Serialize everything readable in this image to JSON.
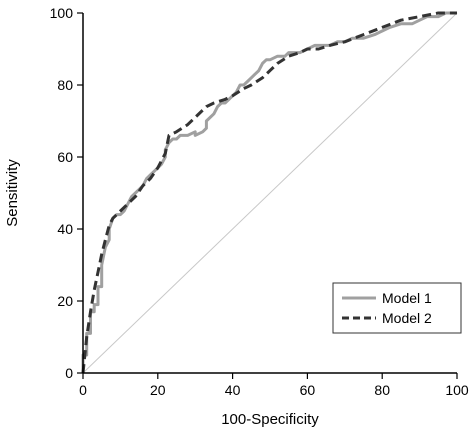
{
  "chart_data": {
    "type": "line",
    "title": "",
    "xlabel": "100-Specificity",
    "ylabel": "Sensitivity",
    "xlim": [
      0,
      100
    ],
    "ylim": [
      0,
      100
    ],
    "x_ticks": [
      0,
      20,
      40,
      60,
      80,
      100
    ],
    "y_ticks": [
      0,
      20,
      40,
      60,
      80,
      100
    ],
    "x_tick_labels": [
      "0",
      "20",
      "40",
      "60",
      "80",
      "100"
    ],
    "y_tick_labels": [
      "0",
      "20",
      "40",
      "60",
      "80",
      "100"
    ],
    "grid": false,
    "legend_position": "bottom-right",
    "reference_line": {
      "x": [
        0,
        100
      ],
      "y": [
        0,
        100
      ],
      "color": "#c8c8c8"
    },
    "series": [
      {
        "name": "Model 1",
        "style": "solid",
        "color": "#a0a0a0",
        "x": [
          0,
          0,
          1,
          1,
          2,
          2,
          3,
          3,
          4,
          4,
          5,
          5,
          6,
          7,
          7,
          8,
          9,
          10,
          11,
          12,
          13,
          14,
          15,
          16,
          17,
          18,
          19,
          20,
          21,
          22,
          22,
          23,
          24,
          25,
          26,
          28,
          30,
          30,
          32,
          33,
          33,
          35,
          36,
          37,
          38,
          39,
          40,
          41,
          42,
          43,
          44,
          45,
          46,
          47,
          48,
          49,
          50,
          52,
          54,
          55,
          56,
          58,
          60,
          62,
          64,
          66,
          68,
          70,
          72,
          75,
          78,
          80,
          82,
          85,
          87,
          88,
          90,
          92,
          95,
          97,
          100
        ],
        "y": [
          0,
          5,
          5,
          11,
          11,
          17,
          17,
          19,
          19,
          24,
          24,
          30,
          35,
          37,
          40,
          43,
          44,
          44,
          45,
          47,
          49,
          50,
          51,
          52,
          54,
          55,
          56,
          57,
          58,
          60,
          62,
          64,
          65,
          65,
          66,
          66,
          67,
          66,
          67,
          68,
          70,
          72,
          74,
          75,
          75,
          76,
          77,
          78,
          80,
          80,
          81,
          82,
          83,
          84,
          86,
          87,
          87,
          88,
          88,
          89,
          89,
          89,
          90,
          91,
          91,
          91,
          92,
          92,
          93,
          93,
          94,
          95,
          96,
          97,
          97,
          97,
          98,
          99,
          99,
          100,
          100
        ]
      },
      {
        "name": "Model 2",
        "style": "dashed",
        "color": "#333333",
        "x": [
          0,
          1,
          2,
          3,
          4,
          5,
          6,
          7,
          8,
          9,
          10,
          12,
          14,
          16,
          18,
          20,
          22,
          23,
          25,
          28,
          30,
          33,
          35,
          38,
          40,
          43,
          45,
          48,
          50,
          52,
          55,
          58,
          60,
          63,
          66,
          70,
          75,
          80,
          85,
          90,
          95,
          100
        ],
        "y": [
          0,
          10,
          17,
          23,
          28,
          33,
          37,
          41,
          43,
          44,
          45,
          47,
          49,
          52,
          54,
          57,
          61,
          66,
          67,
          69,
          71,
          74,
          75,
          76,
          77,
          79,
          80,
          82,
          84,
          86,
          88,
          89,
          90,
          90,
          91,
          92,
          94,
          96,
          98,
          99,
          100,
          100
        ]
      }
    ]
  }
}
